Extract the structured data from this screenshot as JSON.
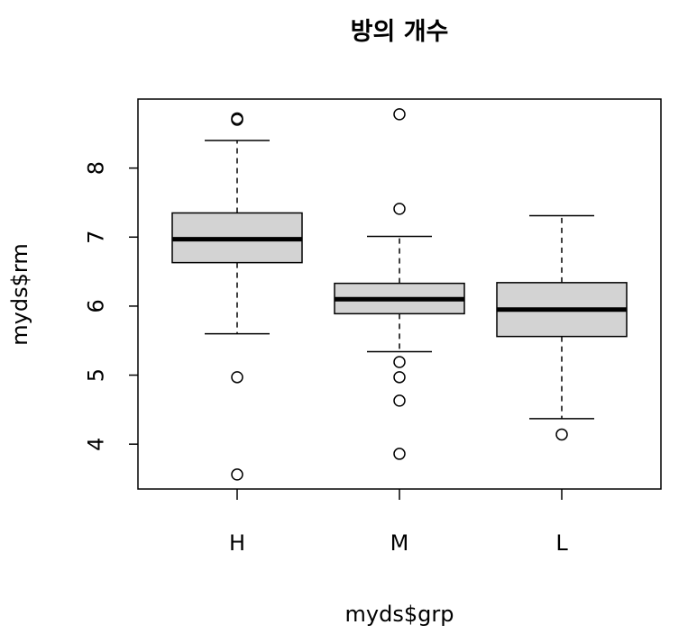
{
  "chart_data": {
    "type": "boxplot",
    "title": "방의 개수",
    "xlabel": "myds$grp",
    "ylabel": "myds$rm",
    "categories": [
      "H",
      "M",
      "L"
    ],
    "y_ticks": [
      4,
      5,
      6,
      7,
      8
    ],
    "ylim": [
      3.35,
      9.0
    ],
    "grid": false,
    "boxes": [
      {
        "category": "H",
        "whisker_low": 5.6,
        "q1": 6.63,
        "median": 6.97,
        "q3": 7.35,
        "whisker_high": 8.4,
        "outliers": [
          8.7,
          8.72,
          4.97,
          3.56
        ]
      },
      {
        "category": "M",
        "whisker_low": 5.34,
        "q1": 5.89,
        "median": 6.1,
        "q3": 6.33,
        "whisker_high": 7.01,
        "outliers": [
          8.78,
          7.41,
          5.19,
          4.97,
          4.63,
          3.86
        ]
      },
      {
        "category": "L",
        "whisker_low": 4.37,
        "q1": 5.56,
        "median": 5.95,
        "q3": 6.34,
        "whisker_high": 7.31,
        "outliers": [
          4.14
        ]
      }
    ],
    "colors": {
      "box_fill": "#d3d3d3",
      "stroke": "#000000"
    }
  }
}
